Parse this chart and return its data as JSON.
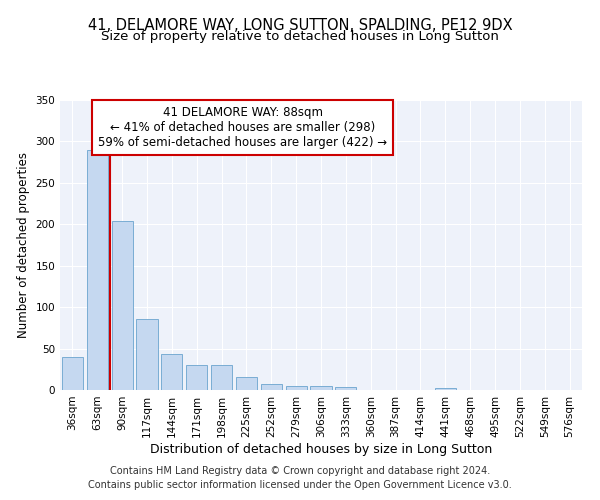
{
  "title1": "41, DELAMORE WAY, LONG SUTTON, SPALDING, PE12 9DX",
  "title2": "Size of property relative to detached houses in Long Sutton",
  "xlabel": "Distribution of detached houses by size in Long Sutton",
  "ylabel": "Number of detached properties",
  "footnote1": "Contains HM Land Registry data © Crown copyright and database right 2024.",
  "footnote2": "Contains public sector information licensed under the Open Government Licence v3.0.",
  "categories": [
    "36sqm",
    "63sqm",
    "90sqm",
    "117sqm",
    "144sqm",
    "171sqm",
    "198sqm",
    "225sqm",
    "252sqm",
    "279sqm",
    "306sqm",
    "333sqm",
    "360sqm",
    "387sqm",
    "414sqm",
    "441sqm",
    "468sqm",
    "495sqm",
    "522sqm",
    "549sqm",
    "576sqm"
  ],
  "bar_values": [
    40,
    290,
    204,
    86,
    43,
    30,
    30,
    16,
    7,
    5,
    5,
    4,
    0,
    0,
    0,
    3,
    0,
    0,
    0,
    0,
    0
  ],
  "bar_color": "#c5d8f0",
  "bar_edge_color": "#7aadd4",
  "vline_color": "#cc0000",
  "vline_x": 2.0,
  "annotation_line1": "41 DELAMORE WAY: 88sqm",
  "annotation_line2": "← 41% of detached houses are smaller (298)",
  "annotation_line3": "59% of semi-detached houses are larger (422) →",
  "ylim": [
    0,
    350
  ],
  "yticks": [
    0,
    50,
    100,
    150,
    200,
    250,
    300,
    350
  ],
  "background_color": "#eef2fa",
  "grid_color": "#ffffff",
  "title1_fontsize": 10.5,
  "title2_fontsize": 9.5,
  "xlabel_fontsize": 9,
  "ylabel_fontsize": 8.5,
  "annot_fontsize": 8.5,
  "tick_fontsize": 7.5,
  "footnote_fontsize": 7
}
